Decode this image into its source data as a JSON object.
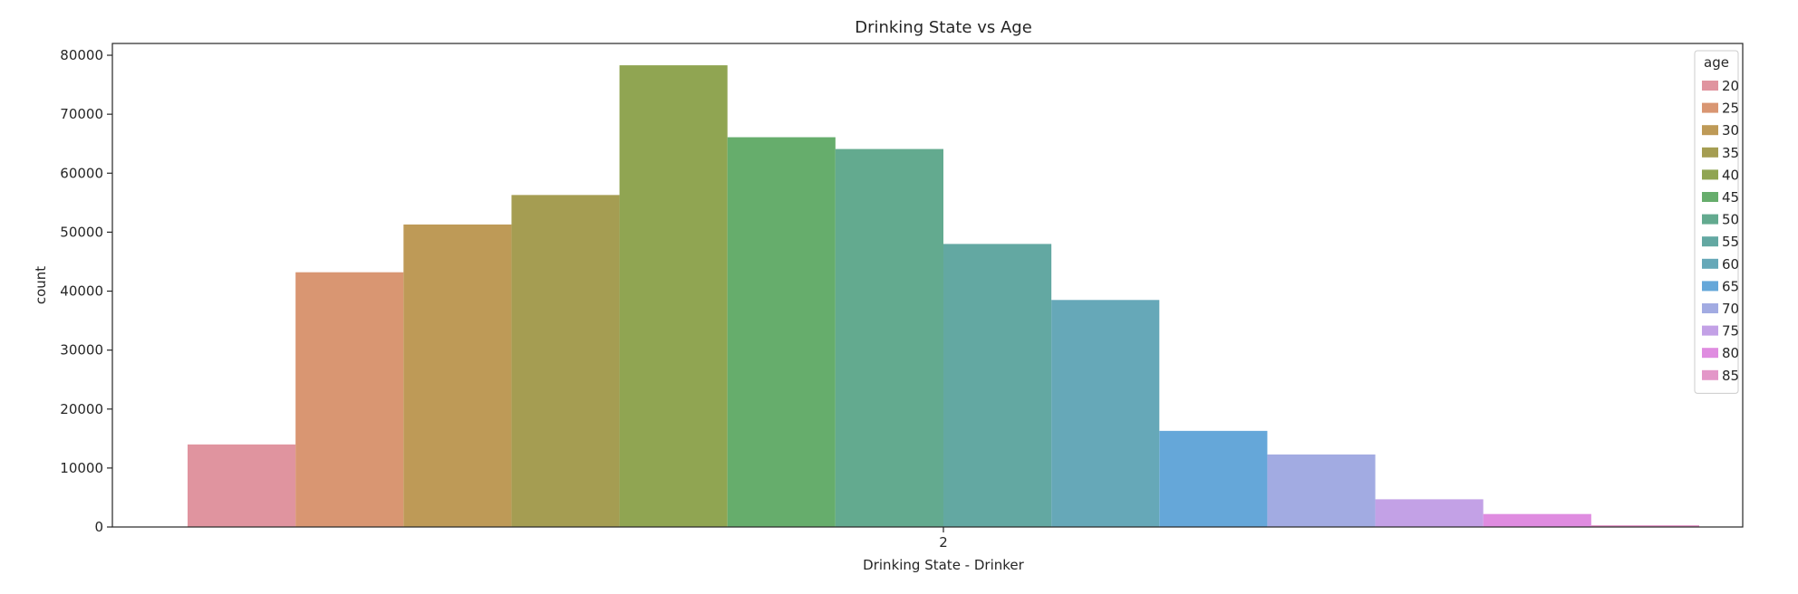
{
  "chart_data": {
    "type": "bar",
    "title": "Drinking State vs Age",
    "xlabel": "Drinking State - Drinker",
    "ylabel": "count",
    "categories": [
      "2"
    ],
    "ylim": [
      0,
      82000
    ],
    "yticks": [
      0,
      10000,
      20000,
      30000,
      40000,
      50000,
      60000,
      70000,
      80000
    ],
    "grid": false,
    "legend": {
      "title": "age",
      "placement": "top-right"
    },
    "series": [
      {
        "name": "20",
        "values": [
          14000
        ],
        "color": "#e0949f"
      },
      {
        "name": "25",
        "values": [
          43200
        ],
        "color": "#d99672"
      },
      {
        "name": "30",
        "values": [
          51300
        ],
        "color": "#be9a57"
      },
      {
        "name": "35",
        "values": [
          56300
        ],
        "color": "#a59d52"
      },
      {
        "name": "40",
        "values": [
          78300
        ],
        "color": "#90a552"
      },
      {
        "name": "45",
        "values": [
          66100
        ],
        "color": "#66ad6c"
      },
      {
        "name": "50",
        "values": [
          64100
        ],
        "color": "#63aa8f"
      },
      {
        "name": "55",
        "values": [
          48000
        ],
        "color": "#63a8a2"
      },
      {
        "name": "60",
        "values": [
          38500
        ],
        "color": "#66a8b8"
      },
      {
        "name": "65",
        "values": [
          16300
        ],
        "color": "#65a7d9"
      },
      {
        "name": "70",
        "values": [
          12300
        ],
        "color": "#a2abe2"
      },
      {
        "name": "75",
        "values": [
          4700
        ],
        "color": "#c3a1e6"
      },
      {
        "name": "80",
        "values": [
          2200
        ],
        "color": "#df8ce0"
      },
      {
        "name": "85",
        "values": [
          300
        ],
        "color": "#e397c8"
      }
    ]
  }
}
